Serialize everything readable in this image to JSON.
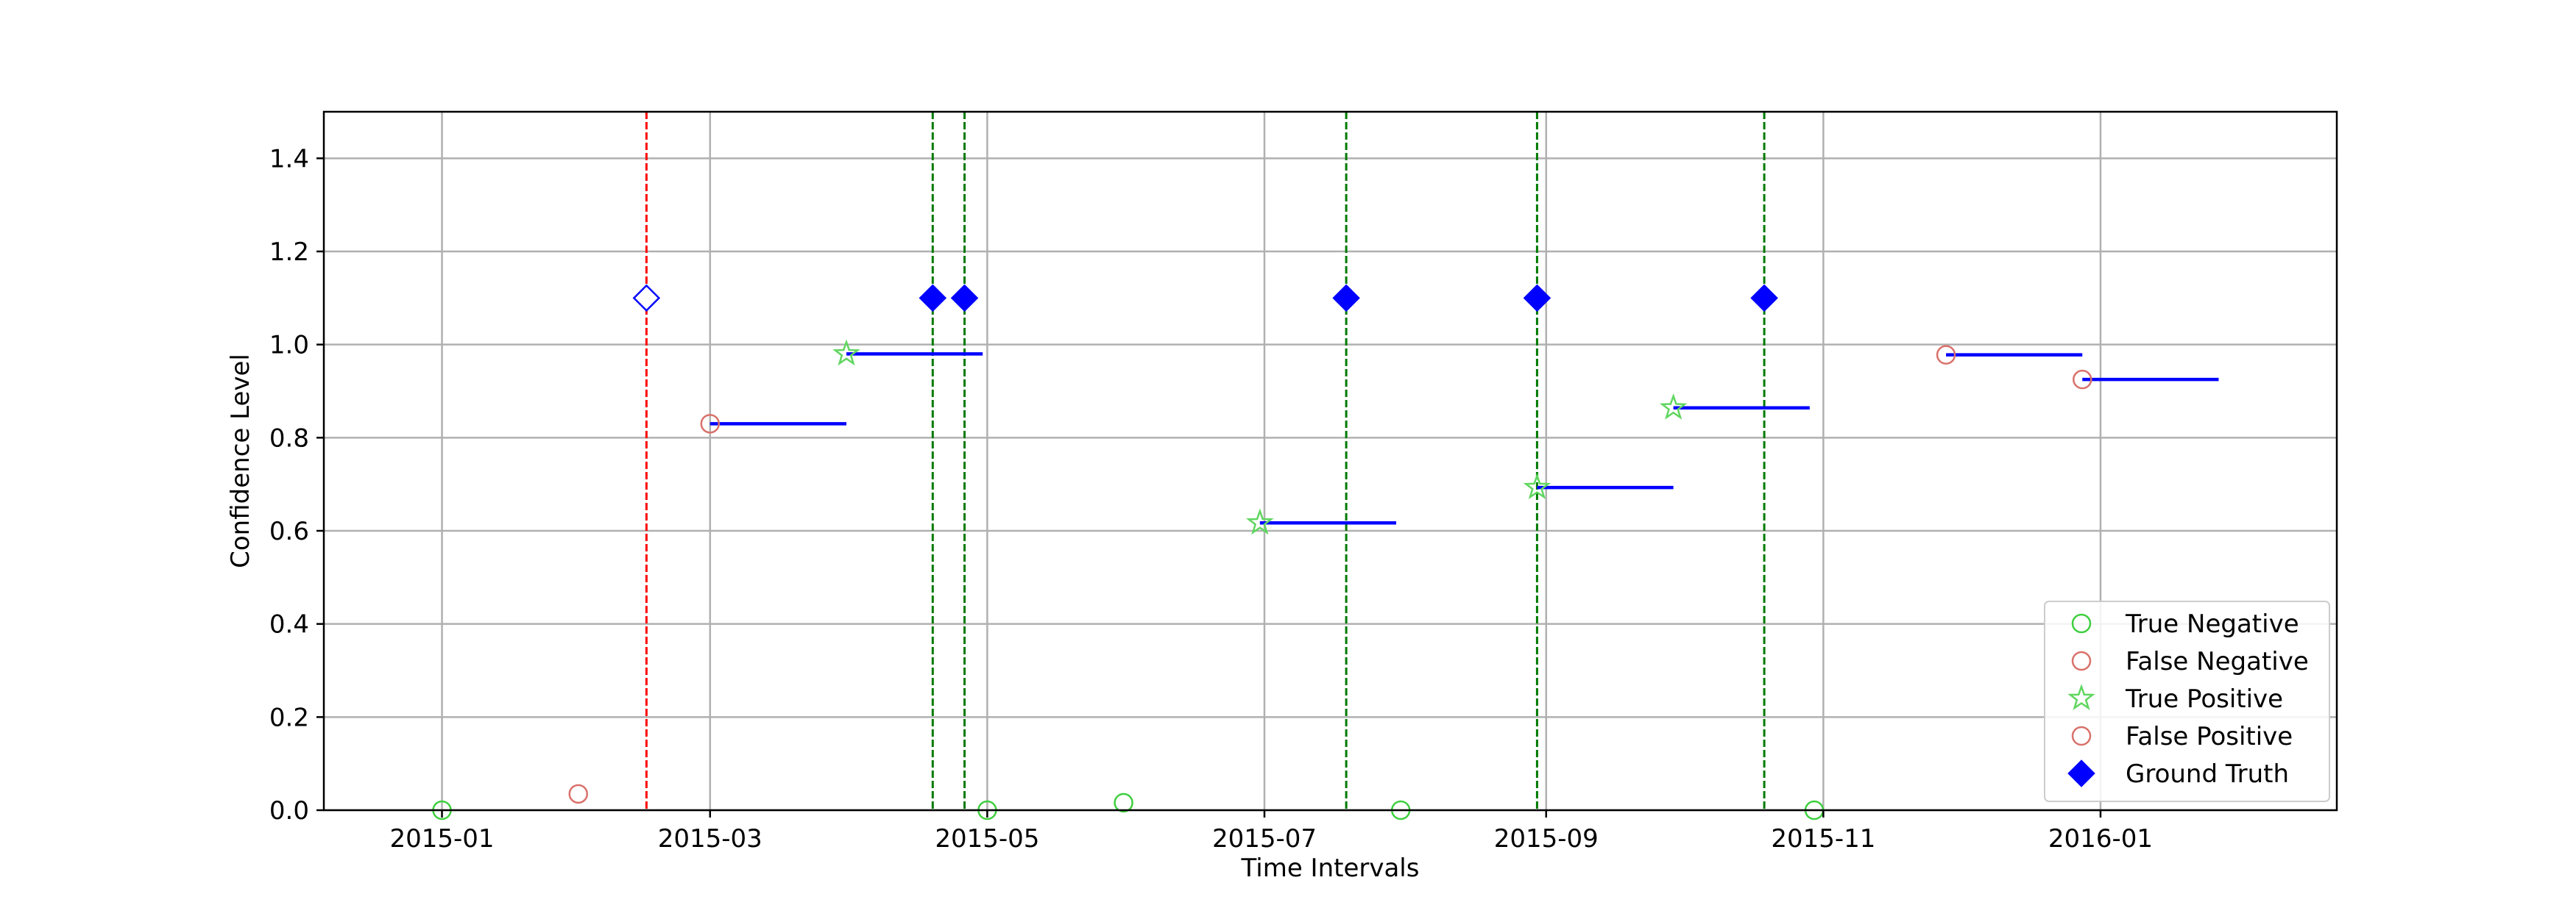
{
  "chart_data": {
    "type": "scatter",
    "xlabel": "Time Intervals",
    "ylabel": "Confidence Level",
    "xlim": [
      "2014-12-06",
      "2016-02-22"
    ],
    "ylim": [
      0,
      1.5
    ],
    "xticks": [
      {
        "date": "2015-01-01",
        "label": "2015-01"
      },
      {
        "date": "2015-03-01",
        "label": "2015-03"
      },
      {
        "date": "2015-05-01",
        "label": "2015-05"
      },
      {
        "date": "2015-07-01",
        "label": "2015-07"
      },
      {
        "date": "2015-09-01",
        "label": "2015-09"
      },
      {
        "date": "2015-11-01",
        "label": "2015-11"
      },
      {
        "date": "2016-01-01",
        "label": "2016-01"
      }
    ],
    "yticks": [
      {
        "value": 0,
        "label": "0.0"
      },
      {
        "value": 0.2,
        "label": "0.2"
      },
      {
        "value": 0.4,
        "label": "0.4"
      },
      {
        "value": 0.6,
        "label": "0.6"
      },
      {
        "value": 0.8,
        "label": "0.8"
      },
      {
        "value": 1.0,
        "label": "1.0"
      },
      {
        "value": 1.2,
        "label": "1.2"
      },
      {
        "value": 1.4,
        "label": "1.4"
      }
    ],
    "grid": true,
    "legend_position": "lower-right",
    "colors": {
      "true_negative": "#3fcf3f",
      "false_negative": "#d9716b",
      "true_positive": "#5fd65f",
      "false_positive": "#d9716b",
      "ground_truth": "#0000ff",
      "interval_line": "#0000ff",
      "vline_detected": "#007a00",
      "vline_missed": "#ff0000",
      "grid": "#b0b0b0"
    },
    "series": [
      {
        "name": "True Negative",
        "marker": "circle-open",
        "points": [
          {
            "x": "2015-01-01",
            "y": 0.0
          },
          {
            "x": "2015-05-01",
            "y": 0.0
          },
          {
            "x": "2015-05-31",
            "y": 0.016
          },
          {
            "x": "2015-07-31",
            "y": 0.0
          },
          {
            "x": "2015-10-30",
            "y": 0.0
          }
        ]
      },
      {
        "name": "False Negative",
        "marker": "circle-open",
        "points": [
          {
            "x": "2015-01-31",
            "y": 0.035
          }
        ]
      },
      {
        "name": "True Positive",
        "marker": "star-open",
        "points": [
          {
            "x": "2015-03-31",
            "y": 0.98,
            "interval_end": "2015-04-30"
          },
          {
            "x": "2015-06-30",
            "y": 0.617,
            "interval_end": "2015-07-30"
          },
          {
            "x": "2015-08-30",
            "y": 0.693,
            "interval_end": "2015-09-29"
          },
          {
            "x": "2015-09-29",
            "y": 0.864,
            "interval_end": "2015-10-29"
          }
        ]
      },
      {
        "name": "False Positive",
        "marker": "circle-open",
        "points": [
          {
            "x": "2015-03-01",
            "y": 0.83,
            "interval_end": "2015-03-31"
          },
          {
            "x": "2015-11-28",
            "y": 0.978,
            "interval_end": "2015-12-28"
          },
          {
            "x": "2015-12-28",
            "y": 0.925,
            "interval_end": "2016-01-27"
          }
        ]
      },
      {
        "name": "Ground Truth",
        "marker": "diamond",
        "points": [
          {
            "x": "2015-02-15",
            "y": 1.1,
            "filled": false
          },
          {
            "x": "2015-04-19",
            "y": 1.1,
            "filled": true
          },
          {
            "x": "2015-04-26",
            "y": 1.1,
            "filled": true
          },
          {
            "x": "2015-07-19",
            "y": 1.1,
            "filled": true
          },
          {
            "x": "2015-08-30",
            "y": 1.1,
            "filled": true
          },
          {
            "x": "2015-10-19",
            "y": 1.1,
            "filled": true
          }
        ]
      }
    ],
    "vertical_lines": [
      {
        "x": "2015-02-15",
        "kind": "missed"
      },
      {
        "x": "2015-04-19",
        "kind": "detected"
      },
      {
        "x": "2015-04-26",
        "kind": "detected"
      },
      {
        "x": "2015-07-19",
        "kind": "detected"
      },
      {
        "x": "2015-08-30",
        "kind": "detected"
      },
      {
        "x": "2015-10-19",
        "kind": "detected"
      }
    ]
  }
}
